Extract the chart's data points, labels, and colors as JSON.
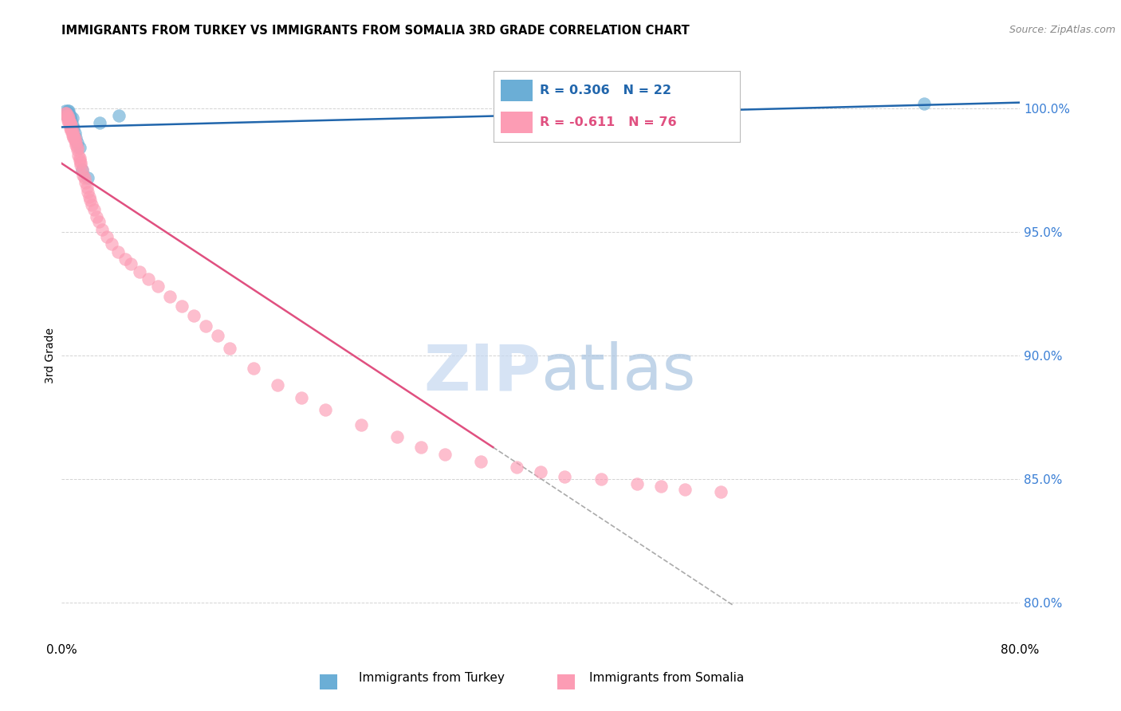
{
  "title": "IMMIGRANTS FROM TURKEY VS IMMIGRANTS FROM SOMALIA 3RD GRADE CORRELATION CHART",
  "source": "Source: ZipAtlas.com",
  "ylabel": "3rd Grade",
  "ylabel_right_ticks": [
    "100.0%",
    "95.0%",
    "90.0%",
    "85.0%",
    "80.0%"
  ],
  "ylabel_right_values": [
    1.0,
    0.95,
    0.9,
    0.85,
    0.8
  ],
  "xlim": [
    0.0,
    0.8
  ],
  "ylim": [
    0.785,
    1.015
  ],
  "turkey_R": 0.306,
  "turkey_N": 22,
  "somalia_R": -0.611,
  "somalia_N": 76,
  "turkey_color": "#6baed6",
  "somalia_color": "#fc9cb4",
  "turkey_line_color": "#2166ac",
  "somalia_line_color": "#e05080",
  "background_color": "#ffffff",
  "grid_color": "#c8c8c8",
  "turkey_x": [
    0.003,
    0.004,
    0.005,
    0.005,
    0.006,
    0.006,
    0.006,
    0.007,
    0.007,
    0.008,
    0.009,
    0.009,
    0.01,
    0.011,
    0.012,
    0.013,
    0.015,
    0.017,
    0.022,
    0.032,
    0.048,
    0.72
  ],
  "turkey_y": [
    0.999,
    0.997,
    0.998,
    0.999,
    0.997,
    0.998,
    0.999,
    0.996,
    0.997,
    0.995,
    0.993,
    0.996,
    0.992,
    0.99,
    0.988,
    0.986,
    0.984,
    0.975,
    0.972,
    0.994,
    0.997,
    1.002
  ],
  "somalia_x": [
    0.003,
    0.004,
    0.004,
    0.005,
    0.005,
    0.005,
    0.006,
    0.006,
    0.006,
    0.007,
    0.007,
    0.007,
    0.007,
    0.008,
    0.008,
    0.008,
    0.009,
    0.009,
    0.009,
    0.01,
    0.01,
    0.011,
    0.011,
    0.012,
    0.012,
    0.013,
    0.013,
    0.014,
    0.015,
    0.015,
    0.016,
    0.016,
    0.017,
    0.018,
    0.019,
    0.02,
    0.021,
    0.022,
    0.023,
    0.024,
    0.025,
    0.027,
    0.029,
    0.031,
    0.034,
    0.038,
    0.042,
    0.047,
    0.053,
    0.058,
    0.065,
    0.072,
    0.08,
    0.09,
    0.1,
    0.11,
    0.12,
    0.13,
    0.14,
    0.16,
    0.18,
    0.2,
    0.22,
    0.25,
    0.28,
    0.3,
    0.32,
    0.35,
    0.38,
    0.4,
    0.42,
    0.45,
    0.48,
    0.5,
    0.52,
    0.55
  ],
  "somalia_y": [
    0.998,
    0.997,
    0.998,
    0.996,
    0.995,
    0.997,
    0.995,
    0.994,
    0.996,
    0.993,
    0.994,
    0.992,
    0.994,
    0.991,
    0.992,
    0.993,
    0.99,
    0.991,
    0.989,
    0.988,
    0.989,
    0.987,
    0.988,
    0.985,
    0.986,
    0.984,
    0.983,
    0.981,
    0.98,
    0.979,
    0.978,
    0.977,
    0.975,
    0.973,
    0.972,
    0.97,
    0.968,
    0.966,
    0.964,
    0.963,
    0.961,
    0.959,
    0.956,
    0.954,
    0.951,
    0.948,
    0.945,
    0.942,
    0.939,
    0.937,
    0.934,
    0.931,
    0.928,
    0.924,
    0.92,
    0.916,
    0.912,
    0.908,
    0.903,
    0.895,
    0.888,
    0.883,
    0.878,
    0.872,
    0.867,
    0.863,
    0.86,
    0.857,
    0.855,
    0.853,
    0.851,
    0.85,
    0.848,
    0.847,
    0.846,
    0.845
  ],
  "somalia_line_x": [
    0.0,
    0.36
  ],
  "somalia_line_y": [
    0.998,
    0.844
  ],
  "turkey_line_x": [
    0.0,
    0.8
  ],
  "turkey_line_y": [
    0.988,
    1.002
  ]
}
